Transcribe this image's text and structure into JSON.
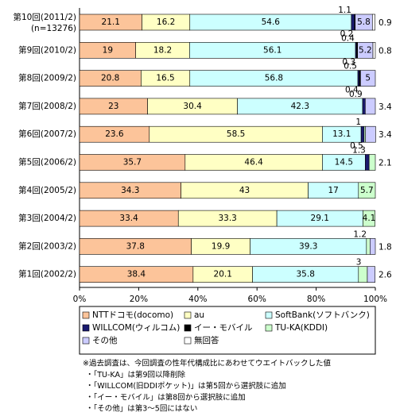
{
  "chart_data": {
    "type": "stacked-barh",
    "categories": [
      "第10回(2011/2)",
      "第9回(2010/2)",
      "第8回(2009/2)",
      "第7回(2008/2)",
      "第6回(2007/2)",
      "第5回(2006/2)",
      "第4回(2005/2)",
      "第3回(2004/2)",
      "第2回(2003/2)",
      "第1回(2002/2)"
    ],
    "sample_size": "(n=13276)",
    "series": [
      {
        "name": "NTTドコモ(docomo)",
        "color": "#fcc49a",
        "values": [
          21.1,
          19.0,
          20.8,
          23.0,
          23.6,
          35.7,
          34.3,
          33.4,
          37.8,
          38.4
        ]
      },
      {
        "name": "au",
        "color": "#ffffc4",
        "values": [
          16.2,
          18.2,
          16.5,
          30.4,
          58.5,
          46.4,
          43.0,
          33.3,
          19.9,
          20.1
        ]
      },
      {
        "name": "SoftBank(ソフトバンク)",
        "color": "#ccffff",
        "values": [
          54.6,
          56.1,
          56.8,
          42.3,
          13.1,
          14.5,
          17.0,
          29.1,
          39.3,
          35.8
        ]
      },
      {
        "name": "WILLCOM(ウィルコム)",
        "color": "#1a1a6e",
        "values": [
          1.1,
          0.4,
          0.5,
          0.9,
          1.0,
          1.3,
          null,
          null,
          null,
          null
        ]
      },
      {
        "name": "イー・モバイル",
        "color": "#000000",
        "values": [
          0.2,
          0.3,
          0.4,
          null,
          null,
          null,
          null,
          null,
          null,
          null
        ]
      },
      {
        "name": "TU-KA(KDDI)",
        "color": "#ccffcc",
        "values": [
          null,
          null,
          null,
          null,
          0.5,
          2.1,
          5.7,
          4.1,
          1.2,
          3.0
        ]
      },
      {
        "name": "その他",
        "color": "#ccccff",
        "values": [
          5.8,
          5.2,
          5.0,
          3.4,
          3.4,
          null,
          null,
          null,
          1.8,
          2.6
        ]
      },
      {
        "name": "無回答",
        "color": "#ffffff",
        "values": [
          0.9,
          0.8,
          null,
          null,
          null,
          null,
          null,
          null,
          null,
          null
        ]
      }
    ],
    "xlim": [
      0,
      100
    ],
    "xticks": [
      {
        "value": 0,
        "label": "0%"
      },
      {
        "value": 20,
        "label": "20%"
      },
      {
        "value": 40,
        "label": "40%"
      },
      {
        "value": 60,
        "label": "60%"
      },
      {
        "value": 80,
        "label": "80%"
      },
      {
        "value": 100,
        "label": "100%"
      }
    ],
    "notes": [
      "※過去調査は、今回調査の性年代構成比にあわせてウエイトバックした値",
      "・「TU-KA」は第9回以降削除",
      "・「WILLCOM(旧DDIポケット)」は第5回から選択肢に追加",
      "・「イー・モバイル」は第8回から選択肢に追加",
      "・「その他」は第3～5回にはない"
    ]
  }
}
